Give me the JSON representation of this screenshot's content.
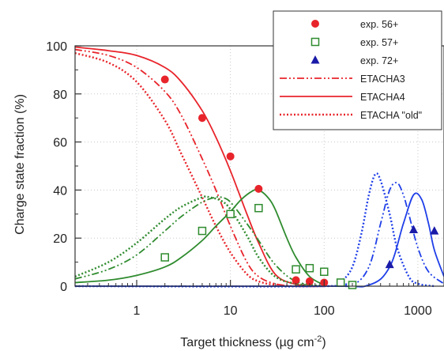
{
  "chart_data": {
    "type": "scatter",
    "xlabel": "Target thickness (µg cm",
    "xlabel_sup": "-2",
    "xlabel_close": ")",
    "ylabel": "Charge state fraction (%)",
    "xscale": "log",
    "xlim": [
      0.22,
      1900
    ],
    "ylim": [
      0,
      100
    ],
    "x_ticks": [
      1,
      10,
      100,
      1000
    ],
    "x_tick_labels": [
      "1",
      "10",
      "100",
      "1000"
    ],
    "y_ticks": [
      0,
      20,
      40,
      60,
      80,
      100
    ],
    "y_tick_labels": [
      "0",
      "20",
      "40",
      "60",
      "80",
      "100"
    ],
    "grid": "dotted",
    "legend_position": "top-right",
    "colors": {
      "q56": "#e8242b",
      "q57": "#2e8b2e",
      "q72": "#1a1aa8",
      "q72_line": "#1f3fe8"
    },
    "legend": [
      {
        "label": "exp. 56+",
        "kind": "marker",
        "marker": "circle",
        "color": "#e8242b"
      },
      {
        "label": "exp. 57+",
        "kind": "marker",
        "marker": "open-square",
        "color": "#2e8b2e"
      },
      {
        "label": "exp. 72+",
        "kind": "marker",
        "marker": "triangle",
        "color": "#1a1aa8"
      },
      {
        "label": "ETACHA3",
        "kind": "line",
        "dash": "dashdotdot",
        "color": "#e8242b"
      },
      {
        "label": "ETACHA4",
        "kind": "line",
        "dash": "solid",
        "color": "#e8242b"
      },
      {
        "label": "ETACHA \"old\"",
        "kind": "line",
        "dash": "dotted",
        "color": "#e8242b"
      }
    ],
    "points": [
      {
        "charge": "56+",
        "marker": "circle",
        "color": "#e8242b",
        "x": [
          2,
          5,
          10,
          20,
          50,
          70,
          100
        ],
        "y": [
          86,
          70,
          54,
          40.5,
          2.5,
          2,
          1.5
        ]
      },
      {
        "charge": "57+",
        "marker": "open-square",
        "color": "#2e8b2e",
        "x": [
          2,
          5,
          10,
          20,
          50,
          70,
          100,
          150,
          200
        ],
        "y": [
          12,
          23,
          30,
          32.5,
          7,
          7.5,
          6,
          1.5,
          0.5
        ]
      },
      {
        "charge": "72+",
        "marker": "triangle",
        "color": "#1a1aa8",
        "x": [
          500,
          900,
          1500
        ],
        "y": [
          9,
          23.5,
          23
        ]
      }
    ],
    "curves": [
      {
        "charge": "56+",
        "model": "ETACHA4",
        "color": "#e8242b",
        "dash": "solid",
        "x": [
          0.22,
          0.5,
          1,
          2,
          3,
          5,
          7,
          10,
          15,
          20,
          30,
          50,
          100
        ],
        "y": [
          99.5,
          98,
          96,
          91,
          85,
          73,
          62,
          48,
          30,
          18,
          5,
          0.8,
          0
        ]
      },
      {
        "charge": "56+",
        "model": "ETACHA3",
        "color": "#e8242b",
        "dash": "dashdotdot",
        "x": [
          0.22,
          0.5,
          1,
          2,
          3,
          5,
          7,
          10,
          15,
          20,
          30,
          50,
          100
        ],
        "y": [
          98.5,
          96,
          91,
          81,
          71,
          53,
          40,
          25,
          10,
          4,
          1,
          0,
          0
        ]
      },
      {
        "charge": "56+",
        "model": "ETACHA \"old\"",
        "color": "#e8242b",
        "dash": "dotted",
        "x": [
          0.22,
          0.5,
          1,
          2,
          3,
          5,
          7,
          10,
          15,
          20,
          30,
          50,
          100
        ],
        "y": [
          97,
          93,
          85,
          69,
          55,
          37,
          25,
          14,
          5,
          2,
          0.5,
          0,
          0
        ]
      },
      {
        "charge": "57+",
        "model": "ETACHA4",
        "color": "#2e8b2e",
        "dash": "solid",
        "x": [
          0.22,
          0.5,
          1,
          2,
          3,
          5,
          7,
          10,
          13,
          17,
          20,
          25,
          30,
          40,
          50,
          70,
          100
        ],
        "y": [
          1.5,
          2.5,
          4.5,
          8,
          12,
          19,
          25,
          31,
          36,
          39.5,
          40,
          37,
          32,
          20,
          12,
          4,
          0.5
        ]
      },
      {
        "charge": "57+",
        "model": "ETACHA3",
        "color": "#2e8b2e",
        "dash": "dashdotdot",
        "x": [
          0.22,
          0.5,
          1,
          2,
          3,
          5,
          7,
          8,
          10,
          15,
          20,
          30,
          50,
          100
        ],
        "y": [
          3,
          7,
          13,
          23,
          29,
          35,
          37,
          37,
          35,
          26,
          19,
          9,
          2,
          0
        ]
      },
      {
        "charge": "57+",
        "model": "ETACHA \"old\"",
        "color": "#2e8b2e",
        "dash": "dotted",
        "x": [
          0.22,
          0.5,
          1,
          2,
          3,
          5,
          6,
          8,
          10,
          15,
          20,
          30,
          50,
          100
        ],
        "y": [
          4,
          10,
          18,
          28,
          33,
          37,
          37,
          35.5,
          32,
          21,
          12,
          4,
          1,
          0
        ]
      },
      {
        "charge": "72+",
        "model": "ETACHA4",
        "color": "#1f3fe8",
        "dash": "solid",
        "x": [
          0.22,
          100,
          300,
          500,
          700,
          900,
          1100,
          1300,
          1500,
          1900
        ],
        "y": [
          0,
          0,
          0.5,
          8,
          26,
          38,
          36,
          26,
          15,
          4
        ]
      },
      {
        "charge": "72+",
        "model": "ETACHA3",
        "color": "#1f3fe8",
        "dash": "dashdotdot",
        "x": [
          0.22,
          100,
          200,
          300,
          400,
          500,
          600,
          700,
          800,
          1000,
          1300,
          1900
        ],
        "y": [
          0,
          0,
          0.5,
          8,
          26,
          40,
          43,
          38,
          30,
          16,
          6,
          1
        ]
      },
      {
        "charge": "72+",
        "model": "ETACHA \"old\"",
        "color": "#1f3fe8",
        "dash": "dotted",
        "x": [
          0.22,
          100,
          150,
          200,
          250,
          300,
          350,
          400,
          500,
          600,
          800,
          1000,
          1500
        ],
        "y": [
          0,
          0,
          2,
          8,
          22,
          38,
          46.5,
          44,
          30,
          16,
          4,
          1,
          0
        ]
      }
    ]
  }
}
